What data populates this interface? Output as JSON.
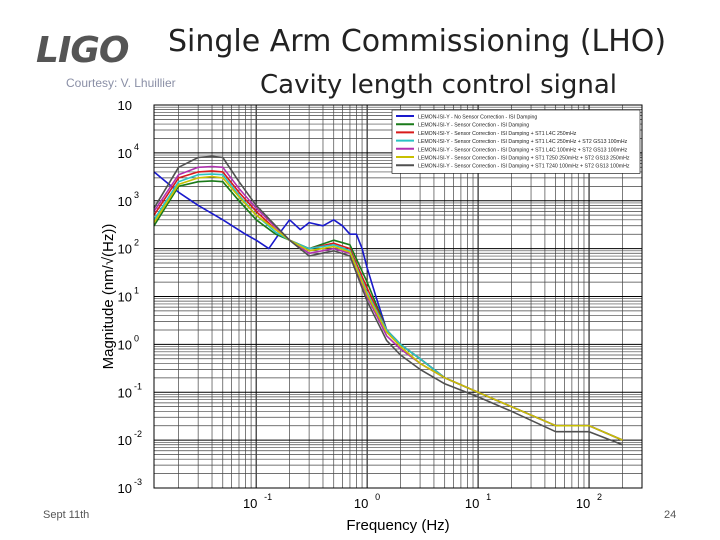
{
  "slide": {
    "logo": "LIGO",
    "title": "Single Arm Commissioning (LHO)",
    "subtitle": "Cavity length control signal",
    "courtesy": "Courtesy: V. Lhuillier",
    "date": "Sept 11th",
    "page_number": "24"
  },
  "colors": {
    "no_correction": "#1a1acc",
    "sensor_correction": "#1a7a1a",
    "isi_blend_250": "#d81b1b",
    "isi_blend_100": "#2ac3c3",
    "isi_t250": "#b030b0",
    "isi_t250_e100": "#c8c000",
    "isi_t240": "#505050"
  },
  "chart_data": {
    "type": "line",
    "title": "",
    "xlabel": "Frequency (Hz)",
    "ylabel": "Magnitude (nm/√(Hz))",
    "xscale": "log",
    "yscale": "log",
    "xlim": [
      0.012,
      300
    ],
    "ylim": [
      0.001,
      100000
    ],
    "grid": true,
    "legend_position": "top-right",
    "x_ticks": [
      {
        "value": 0.1,
        "base": "10",
        "exp": "-1"
      },
      {
        "value": 1,
        "base": "10",
        "exp": "0"
      },
      {
        "value": 10,
        "base": "10",
        "exp": "1"
      },
      {
        "value": 100,
        "base": "10",
        "exp": "2"
      }
    ],
    "y_ticks": [
      {
        "value": 0.001,
        "base": "10",
        "exp": "-3"
      },
      {
        "value": 0.01,
        "base": "10",
        "exp": "-2"
      },
      {
        "value": 0.1,
        "base": "10",
        "exp": "-1"
      },
      {
        "value": 1,
        "base": "10",
        "exp": "0"
      },
      {
        "value": 10,
        "base": "10",
        "exp": "1"
      },
      {
        "value": 100,
        "base": "10",
        "exp": "2"
      },
      {
        "value": 1000,
        "base": "10",
        "exp": "3"
      },
      {
        "value": 10000,
        "base": "10",
        "exp": "4"
      },
      {
        "value": 100000,
        "base": "10",
        "exp": ""
      }
    ],
    "series": [
      {
        "name": "LEMON-ISI-Y - No Sensor Correction - ISI Damping",
        "color_key": "no_correction",
        "x": [
          0.012,
          0.02,
          0.03,
          0.05,
          0.08,
          0.1,
          0.13,
          0.16,
          0.2,
          0.25,
          0.3,
          0.4,
          0.5,
          0.6,
          0.7,
          0.8,
          0.9,
          1,
          1.2,
          1.5,
          2,
          3,
          5,
          10,
          20,
          50,
          100,
          200
        ],
        "y": [
          4000,
          1500,
          800,
          400,
          200,
          150,
          100,
          200,
          400,
          250,
          350,
          300,
          400,
          300,
          200,
          200,
          100,
          40,
          10,
          2,
          1,
          0.5,
          0.2,
          0.1,
          0.05,
          0.02,
          0.02,
          0.01
        ]
      },
      {
        "name": "LEMON-ISI-Y - Sensor Correction - ISI Damping",
        "color_key": "sensor_correction",
        "x": [
          0.012,
          0.02,
          0.03,
          0.04,
          0.05,
          0.07,
          0.1,
          0.15,
          0.2,
          0.3,
          0.5,
          0.7,
          1,
          1.5,
          2,
          3,
          5,
          10,
          20,
          50,
          100,
          200
        ],
        "y": [
          300,
          2000,
          2500,
          2600,
          2500,
          1000,
          400,
          200,
          150,
          100,
          150,
          120,
          20,
          2,
          1,
          0.5,
          0.2,
          0.1,
          0.05,
          0.02,
          0.02,
          0.01
        ]
      },
      {
        "name": "LEMON-ISI-Y - Sensor Correction - ISI Damping + ST1 L4C 250mHz",
        "color_key": "isi_blend_250",
        "x": [
          0.012,
          0.02,
          0.03,
          0.04,
          0.05,
          0.07,
          0.1,
          0.15,
          0.2,
          0.3,
          0.5,
          0.7,
          1,
          1.5,
          2,
          3,
          5,
          10,
          20,
          50,
          100,
          200
        ],
        "y": [
          500,
          3000,
          4000,
          4200,
          4000,
          1500,
          600,
          250,
          150,
          100,
          130,
          100,
          15,
          2,
          1,
          0.5,
          0.2,
          0.1,
          0.05,
          0.02,
          0.02,
          0.01
        ]
      },
      {
        "name": "LEMON-ISI-Y - Sensor Correction - ISI Damping + ST1 L4C 250mHz + ST2 GS13 100mHz",
        "color_key": "isi_blend_100",
        "x": [
          0.012,
          0.02,
          0.03,
          0.04,
          0.05,
          0.07,
          0.1,
          0.15,
          0.2,
          0.3,
          0.5,
          0.7,
          1,
          1.5,
          2,
          3,
          5,
          10,
          20,
          50,
          100,
          200
        ],
        "y": [
          400,
          2500,
          3500,
          3600,
          3500,
          1300,
          500,
          220,
          150,
          100,
          120,
          90,
          12,
          2,
          1,
          0.5,
          0.2,
          0.1,
          0.05,
          0.02,
          0.02,
          0.01
        ]
      },
      {
        "name": "LEMON-ISI-Y - Sensor Correction - ISI Damping + ST1 L4C 100mHz + ST2 GS13 100mHz",
        "color_key": "isi_t250",
        "x": [
          0.012,
          0.02,
          0.03,
          0.04,
          0.05,
          0.07,
          0.1,
          0.15,
          0.2,
          0.3,
          0.5,
          0.7,
          1,
          1.5,
          2,
          3,
          5,
          10,
          20,
          50,
          100,
          200
        ],
        "y": [
          600,
          3500,
          5000,
          5200,
          5000,
          1800,
          700,
          280,
          150,
          80,
          100,
          80,
          10,
          1.5,
          0.8,
          0.4,
          0.2,
          0.1,
          0.05,
          0.02,
          0.02,
          0.01
        ]
      },
      {
        "name": "LEMON-ISI-Y - Sensor Correction - ISI Damping + ST1 T250 250mHz + ST2 GS13 250mHz",
        "color_key": "isi_t250_e100",
        "x": [
          0.012,
          0.02,
          0.03,
          0.04,
          0.05,
          0.07,
          0.1,
          0.15,
          0.2,
          0.3,
          0.5,
          0.7,
          1,
          1.5,
          2,
          3,
          5,
          10,
          20,
          50,
          100,
          200
        ],
        "y": [
          350,
          2200,
          3000,
          3200,
          3000,
          1200,
          500,
          250,
          150,
          90,
          110,
          85,
          11,
          1.8,
          0.9,
          0.4,
          0.2,
          0.1,
          0.05,
          0.02,
          0.02,
          0.01
        ]
      },
      {
        "name": "LEMON-ISI-Y - Sensor Correction - ISI Damping + ST1 T240 100mHz + ST2 GS13 100mHz",
        "color_key": "isi_t240",
        "x": [
          0.012,
          0.02,
          0.03,
          0.04,
          0.05,
          0.07,
          0.1,
          0.15,
          0.2,
          0.3,
          0.5,
          0.7,
          1,
          1.5,
          2,
          3,
          5,
          10,
          20,
          50,
          100,
          200
        ],
        "y": [
          700,
          5000,
          8000,
          8500,
          8000,
          2500,
          800,
          300,
          150,
          70,
          90,
          70,
          8,
          1.2,
          0.6,
          0.3,
          0.15,
          0.08,
          0.04,
          0.015,
          0.015,
          0.008
        ]
      }
    ]
  }
}
